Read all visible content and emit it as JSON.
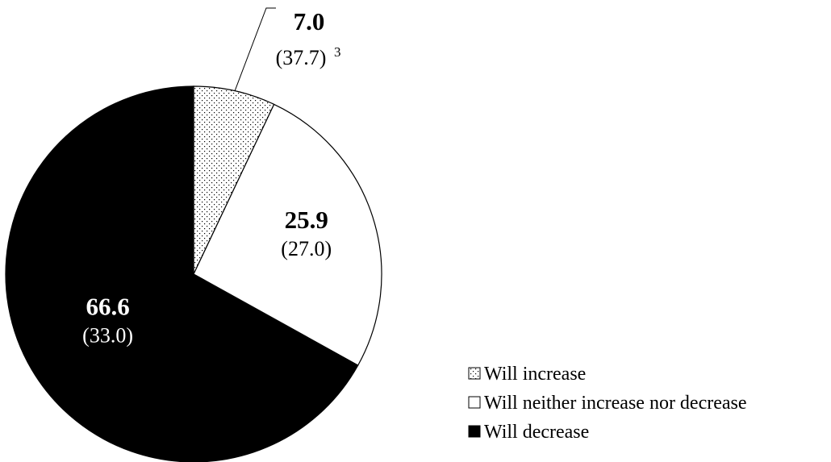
{
  "chart_data": {
    "type": "pie",
    "slices": [
      {
        "label": "Will increase",
        "value": 7.0,
        "display": "7.0",
        "compare": "(37.7)",
        "compare_note": "3",
        "fill": "dots"
      },
      {
        "label": "Will neither increase nor decrease",
        "value": 25.9,
        "display": "25.9",
        "compare": "(27.0)",
        "fill": "#ffffff"
      },
      {
        "label": "Will decrease",
        "value": 66.6,
        "display": "66.6",
        "compare": "(33.0)",
        "fill": "#000000"
      }
    ],
    "legend_position": "bottom-right",
    "start_angle": "12 o'clock",
    "direction": "clockwise"
  }
}
